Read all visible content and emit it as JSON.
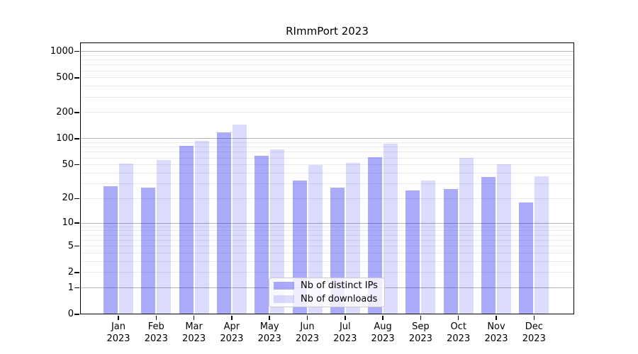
{
  "chart_data": {
    "type": "bar",
    "title": "RImmPort 2023",
    "categories": [
      {
        "month": "Jan",
        "year": "2023"
      },
      {
        "month": "Feb",
        "year": "2023"
      },
      {
        "month": "Mar",
        "year": "2023"
      },
      {
        "month": "Apr",
        "year": "2023"
      },
      {
        "month": "May",
        "year": "2023"
      },
      {
        "month": "Jun",
        "year": "2023"
      },
      {
        "month": "Jul",
        "year": "2023"
      },
      {
        "month": "Aug",
        "year": "2023"
      },
      {
        "month": "Sep",
        "year": "2023"
      },
      {
        "month": "Oct",
        "year": "2023"
      },
      {
        "month": "Nov",
        "year": "2023"
      },
      {
        "month": "Dec",
        "year": "2023"
      }
    ],
    "series": [
      {
        "name": "Nb of distinct IPs",
        "color": "rgba(15,15,245,0.35)",
        "values": [
          28,
          27,
          83,
          118,
          64,
          33,
          27,
          61,
          25,
          26,
          36,
          18
        ]
      },
      {
        "name": "Nb of downloads",
        "color": "rgba(15,15,245,0.15)",
        "values": [
          52,
          57,
          94,
          145,
          75,
          50,
          53,
          88,
          33,
          60,
          51,
          37
        ]
      }
    ],
    "xlabel": "",
    "ylabel": "",
    "yscale": "log1p",
    "ylim": [
      0,
      1267
    ],
    "yticks": [
      0,
      1,
      2,
      5,
      10,
      20,
      50,
      100,
      200,
      500,
      1000
    ],
    "major_grid_values": [
      1,
      10,
      100,
      1000
    ],
    "minor_grid_subs": [
      2,
      3,
      4,
      5,
      6,
      7,
      8,
      9
    ],
    "minor_grid_decades": [
      1,
      10,
      100
    ],
    "grid": true,
    "legend_position": "lower center"
  },
  "colors": {
    "major_grid": "#b4b4b4",
    "minor_grid": "#ebebeb",
    "frame": "#000000",
    "text": "#000000",
    "legend_border": "#cccccc",
    "legend_bg": "rgba(255,255,255,0.8)"
  }
}
